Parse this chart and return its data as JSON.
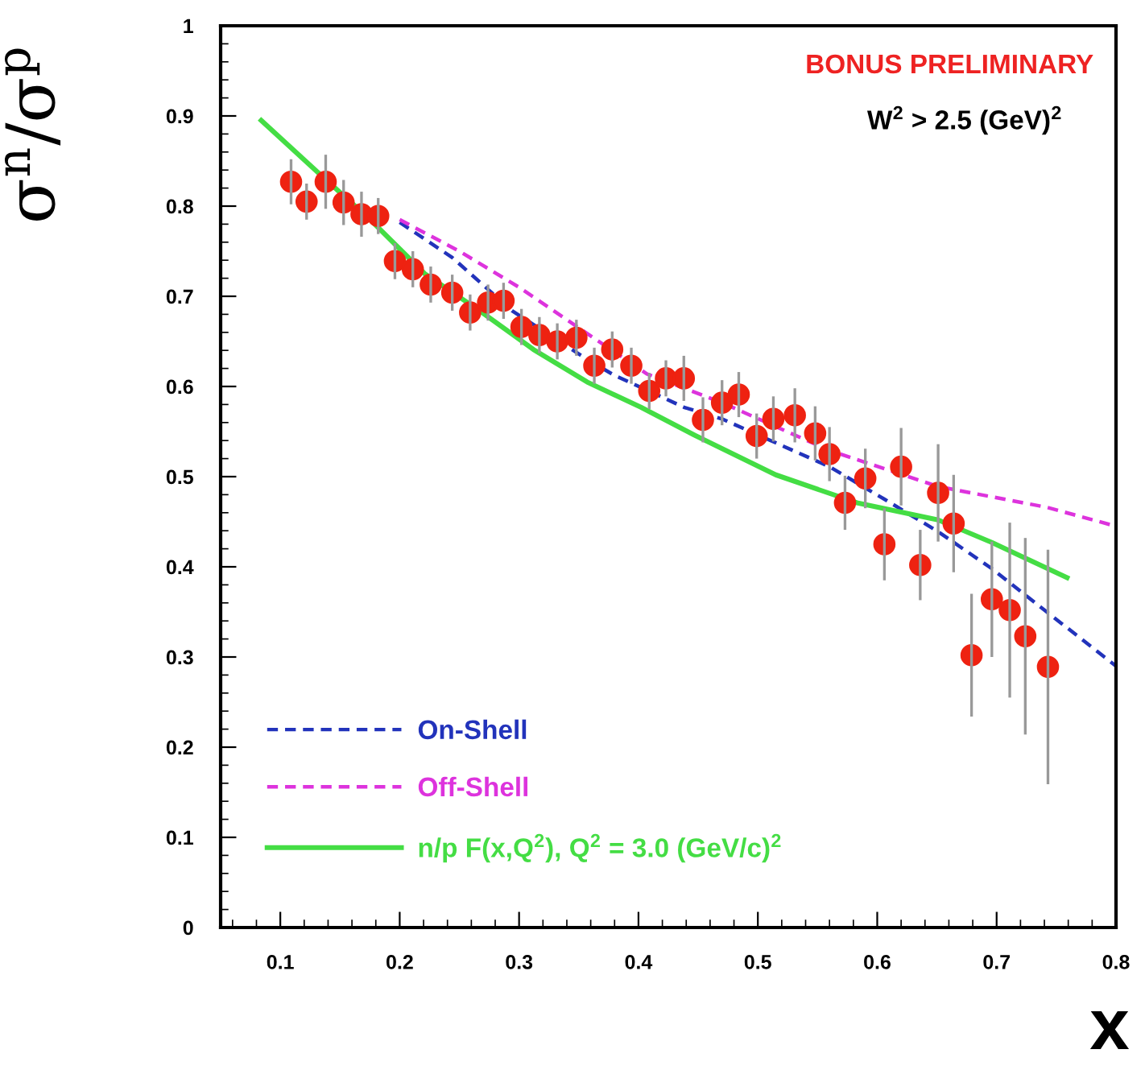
{
  "chart_data": {
    "type": "scatter",
    "xlabel": "x",
    "ylabel": "σ$^{n}$/σ$^{p}$",
    "xlim": [
      0.05,
      0.8
    ],
    "ylim": [
      0,
      1
    ],
    "xticks": [
      0.1,
      0.2,
      0.3,
      0.4,
      0.5,
      0.6,
      0.7,
      0.8
    ],
    "yticks": [
      0,
      0.1,
      0.2,
      0.3,
      0.4,
      0.5,
      0.6,
      0.7,
      0.8,
      0.9,
      1
    ],
    "grid": false,
    "legend": "bottom left",
    "annotations": [
      "BONUS PRELIMINARY",
      "W$^{2}$ > 2.5 (GeV)$^{2}$"
    ],
    "series": [
      {
        "color": "#ee2211",
        "marker": "circle",
        "x": [
          0.109,
          0.122,
          0.138,
          0.153,
          0.168,
          0.182,
          0.196,
          0.211,
          0.226,
          0.244,
          0.259,
          0.274,
          0.287,
          0.302,
          0.317,
          0.332,
          0.348,
          0.363,
          0.378,
          0.394,
          0.409,
          0.423,
          0.438,
          0.454,
          0.47,
          0.484,
          0.499,
          0.513,
          0.531,
          0.548,
          0.56,
          0.573,
          0.59,
          0.606,
          0.62,
          0.636,
          0.651,
          0.664,
          0.679,
          0.696,
          0.711,
          0.724,
          0.743
        ],
        "values": [
          0.827,
          0.805,
          0.827,
          0.804,
          0.791,
          0.789,
          0.739,
          0.73,
          0.713,
          0.704,
          0.682,
          0.693,
          0.695,
          0.666,
          0.657,
          0.65,
          0.654,
          0.623,
          0.641,
          0.623,
          0.595,
          0.609,
          0.609,
          0.563,
          0.582,
          0.591,
          0.545,
          0.564,
          0.568,
          0.548,
          0.525,
          0.471,
          0.498,
          0.425,
          0.511,
          0.402,
          0.482,
          0.448,
          0.302,
          0.364,
          0.352,
          0.323,
          0.289
        ],
        "errors": [
          0.025,
          0.02,
          0.03,
          0.025,
          0.025,
          0.02,
          0.02,
          0.02,
          0.02,
          0.02,
          0.02,
          0.02,
          0.02,
          0.02,
          0.02,
          0.02,
          0.02,
          0.02,
          0.02,
          0.02,
          0.02,
          0.02,
          0.025,
          0.025,
          0.025,
          0.025,
          0.025,
          0.025,
          0.03,
          0.03,
          0.03,
          0.03,
          0.033,
          0.04,
          0.043,
          0.039,
          0.054,
          0.054,
          0.068,
          0.064,
          0.097,
          0.109,
          0.13
        ]
      },
      {
        "type": "line",
        "name": "On-Shell",
        "color": "#2233bb",
        "line_style": "dashed",
        "x": [
          0.2,
          0.244,
          0.294,
          0.357,
          0.379,
          0.438,
          0.47,
          0.56,
          0.606,
          0.651,
          0.696,
          0.742,
          0.8
        ],
        "values": [
          0.782,
          0.743,
          0.684,
          0.63,
          0.613,
          0.577,
          0.564,
          0.511,
          0.475,
          0.439,
          0.398,
          0.35,
          0.29
        ]
      },
      {
        "type": "line",
        "name": "Off-Shell",
        "color": "#dd33dd",
        "line_style": "dashed",
        "x": [
          0.2,
          0.25,
          0.3,
          0.35,
          0.407,
          0.47,
          0.56,
          0.651,
          0.742,
          0.8
        ],
        "values": [
          0.785,
          0.75,
          0.71,
          0.665,
          0.614,
          0.582,
          0.529,
          0.489,
          0.466,
          0.445
        ]
      },
      {
        "type": "line",
        "name": "n/p F(x,Q$^{2}$), Q$^{2}$ = 3.0 (GeV/c)$^{2}$",
        "color": "#44dd44",
        "line_style": "solid",
        "x": [
          0.084,
          0.131,
          0.176,
          0.221,
          0.267,
          0.312,
          0.357,
          0.402,
          0.447,
          0.515,
          0.583,
          0.651,
          0.696,
          0.759
        ],
        "values": [
          0.895,
          0.838,
          0.784,
          0.725,
          0.684,
          0.641,
          0.605,
          0.577,
          0.546,
          0.502,
          0.471,
          0.452,
          0.427,
          0.388
        ]
      }
    ]
  }
}
